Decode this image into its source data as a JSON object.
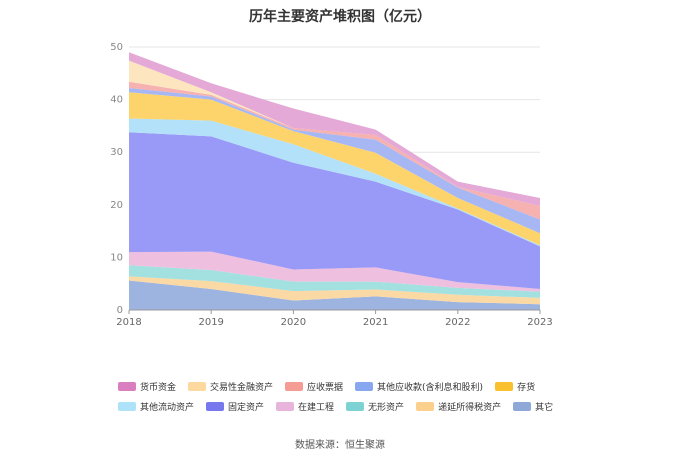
{
  "chart_data": {
    "type": "area",
    "title": "历年主要资产堆积图（亿元）",
    "x": [
      "2018",
      "2019",
      "2020",
      "2021",
      "2022",
      "2023"
    ],
    "ylim": [
      0,
      50
    ],
    "yticks": [
      0,
      10,
      20,
      30,
      40,
      50
    ],
    "grid": true,
    "legend_position": "bottom",
    "series": [
      {
        "name": "其它",
        "color": "#9db4e0",
        "values": [
          5.6,
          4.0,
          1.8,
          2.6,
          1.5,
          1.1
        ]
      },
      {
        "name": "递延所得税资产",
        "color": "#fbd9a4",
        "values": [
          0.8,
          1.5,
          1.8,
          1.3,
          1.4,
          1.2
        ]
      },
      {
        "name": "无形资产",
        "color": "#a3e0e0",
        "values": [
          2.1,
          2.1,
          1.8,
          1.5,
          1.3,
          1.2
        ]
      },
      {
        "name": "在建工程",
        "color": "#eebfdf",
        "values": [
          2.5,
          3.5,
          2.3,
          2.7,
          1.1,
          0.5
        ]
      },
      {
        "name": "固定资产",
        "color": "#9999f7",
        "values": [
          22.8,
          21.9,
          20.3,
          16.3,
          13.8,
          8.1
        ]
      },
      {
        "name": "其他流动资产",
        "color": "#b3e1f9",
        "values": [
          2.6,
          3.0,
          3.5,
          1.5,
          0.2,
          0.2
        ]
      },
      {
        "name": "存货",
        "color": "#fdd46c",
        "values": [
          5.0,
          4.0,
          2.5,
          4.0,
          2.0,
          2.3
        ]
      },
      {
        "name": "其他应收款(含利息和股利)",
        "color": "#a7b7f4",
        "values": [
          0.8,
          0.6,
          0.3,
          2.5,
          2.0,
          2.6
        ]
      },
      {
        "name": "应收票据",
        "color": "#f6b1b1",
        "values": [
          1.2,
          0.3,
          0.3,
          0.9,
          0.1,
          2.6
        ]
      },
      {
        "name": "交易性金融资产",
        "color": "#fde5c0",
        "values": [
          4.0,
          0.5,
          0.0,
          0.0,
          0.0,
          0.0
        ]
      },
      {
        "name": "货币资金",
        "color": "#e4a9d6",
        "values": [
          1.6,
          1.7,
          3.7,
          1.0,
          1.0,
          1.5
        ]
      }
    ]
  },
  "legend": [
    [
      {
        "name": "货币资金",
        "color": "#d97fc0"
      },
      {
        "name": "交易性金融资产",
        "color": "#fdd9a0"
      },
      {
        "name": "应收票据",
        "color": "#f59c95"
      },
      {
        "name": "其他应收款(含利息和股利)",
        "color": "#87a7f0"
      },
      {
        "name": "存货",
        "color": "#fbc02d"
      }
    ],
    [
      {
        "name": "其他流动资产",
        "color": "#aee2f9"
      },
      {
        "name": "固定资产",
        "color": "#7777ee"
      },
      {
        "name": "在建工程",
        "color": "#e8b4dc"
      },
      {
        "name": "无形资产",
        "color": "#7dd3d3"
      },
      {
        "name": "递延所得税资产",
        "color": "#fbd08f"
      },
      {
        "name": "其它",
        "color": "#8ea8d8"
      }
    ]
  ],
  "source": "数据来源：恒生聚源"
}
